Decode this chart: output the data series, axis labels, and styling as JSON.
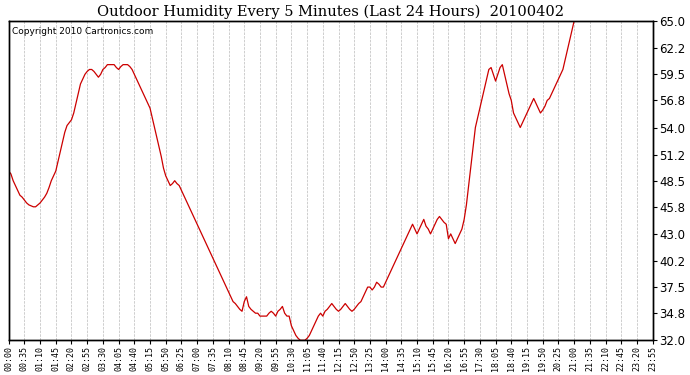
{
  "title": "Outdoor Humidity Every 5 Minutes (Last 24 Hours)  20100402",
  "copyright": "Copyright 2010 Cartronics.com",
  "line_color": "#cc0000",
  "bg_color": "#ffffff",
  "plot_bg_color": "#ffffff",
  "grid_color": "#aaaaaa",
  "ylim": [
    32.0,
    65.0
  ],
  "yticks": [
    32.0,
    34.8,
    37.5,
    40.2,
    43.0,
    45.8,
    48.5,
    51.2,
    54.0,
    56.8,
    59.5,
    62.2,
    65.0
  ],
  "xtick_labels": [
    "00:00",
    "00:35",
    "01:10",
    "01:45",
    "02:20",
    "02:55",
    "03:30",
    "04:05",
    "04:40",
    "05:15",
    "05:50",
    "06:25",
    "07:00",
    "07:35",
    "08:10",
    "08:45",
    "09:20",
    "09:55",
    "10:30",
    "11:05",
    "11:40",
    "12:15",
    "12:50",
    "13:25",
    "14:00",
    "14:35",
    "15:10",
    "15:45",
    "16:20",
    "16:55",
    "17:30",
    "18:05",
    "18:40",
    "19:15",
    "19:50",
    "20:25",
    "21:00",
    "21:35",
    "22:10",
    "22:45",
    "23:20",
    "23:55"
  ],
  "humidity_values": [
    49.5,
    49.2,
    48.5,
    48.0,
    47.5,
    47.0,
    46.8,
    46.5,
    46.2,
    46.0,
    45.9,
    45.8,
    45.8,
    46.0,
    46.2,
    46.5,
    46.8,
    47.2,
    47.8,
    48.5,
    49.0,
    49.5,
    50.5,
    51.5,
    52.5,
    53.5,
    54.2,
    54.5,
    54.8,
    55.5,
    56.5,
    57.5,
    58.5,
    59.0,
    59.5,
    59.8,
    60.0,
    60.0,
    59.8,
    59.5,
    59.2,
    59.5,
    60.0,
    60.2,
    60.5,
    60.5,
    60.5,
    60.5,
    60.2,
    60.0,
    60.3,
    60.5,
    60.5,
    60.5,
    60.3,
    60.0,
    59.5,
    59.0,
    58.5,
    58.0,
    57.5,
    57.0,
    56.5,
    56.0,
    55.0,
    54.0,
    53.0,
    52.0,
    51.0,
    49.8,
    49.0,
    48.5,
    48.0,
    48.2,
    48.5,
    48.2,
    48.0,
    47.5,
    47.0,
    46.5,
    46.0,
    45.5,
    45.0,
    44.5,
    44.0,
    43.5,
    43.0,
    42.5,
    42.0,
    41.5,
    41.0,
    40.5,
    40.0,
    39.5,
    39.0,
    38.5,
    38.0,
    37.5,
    37.0,
    36.5,
    36.0,
    35.8,
    35.5,
    35.2,
    35.0,
    36.0,
    36.5,
    35.5,
    35.2,
    35.0,
    34.8,
    34.8,
    34.5,
    34.5,
    34.5,
    34.5,
    34.8,
    35.0,
    34.8,
    34.5,
    35.0,
    35.2,
    35.5,
    34.8,
    34.5,
    34.5,
    33.5,
    33.0,
    32.5,
    32.2,
    32.0,
    32.0,
    32.0,
    32.2,
    32.5,
    33.0,
    33.5,
    34.0,
    34.5,
    34.8,
    34.5,
    35.0,
    35.2,
    35.5,
    35.8,
    35.5,
    35.2,
    35.0,
    35.2,
    35.5,
    35.8,
    35.5,
    35.2,
    35.0,
    35.2,
    35.5,
    35.8,
    36.0,
    36.5,
    37.0,
    37.5,
    37.5,
    37.2,
    37.5,
    38.0,
    37.8,
    37.5,
    37.5,
    38.0,
    38.5,
    39.0,
    39.5,
    40.0,
    40.5,
    41.0,
    41.5,
    42.0,
    42.5,
    43.0,
    43.5,
    44.0,
    43.5,
    43.0,
    43.5,
    44.0,
    44.5,
    43.8,
    43.5,
    43.0,
    43.5,
    44.0,
    44.5,
    44.8,
    44.5,
    44.2,
    44.0,
    42.5,
    43.0,
    42.5,
    42.0,
    42.5,
    43.0,
    43.5,
    44.5,
    46.0,
    48.0,
    50.0,
    52.0,
    54.0,
    55.0,
    56.0,
    57.0,
    58.0,
    59.0,
    60.0,
    60.2,
    59.5,
    58.8,
    59.5,
    60.2,
    60.5,
    59.5,
    58.5,
    57.5,
    56.8,
    55.5,
    55.0,
    54.5,
    54.0,
    54.5,
    55.0,
    55.5,
    56.0,
    56.5,
    57.0,
    56.5,
    56.0,
    55.5,
    55.8,
    56.2,
    56.8,
    57.0,
    57.5,
    58.0,
    58.5,
    59.0,
    59.5,
    60.0,
    61.0,
    62.0,
    63.0,
    64.0,
    65.0,
    65.0,
    65.0,
    65.0,
    65.0,
    65.0,
    65.0,
    65.0,
    65.0,
    65.0,
    65.0,
    65.0,
    65.0,
    65.0,
    65.0,
    65.0,
    65.0,
    65.0,
    65.0,
    65.0,
    65.0,
    65.0,
    65.0,
    65.0,
    65.0,
    65.0,
    65.0,
    65.0,
    65.0,
    65.0,
    65.0,
    65.0,
    65.0,
    65.0,
    65.0,
    65.0
  ]
}
